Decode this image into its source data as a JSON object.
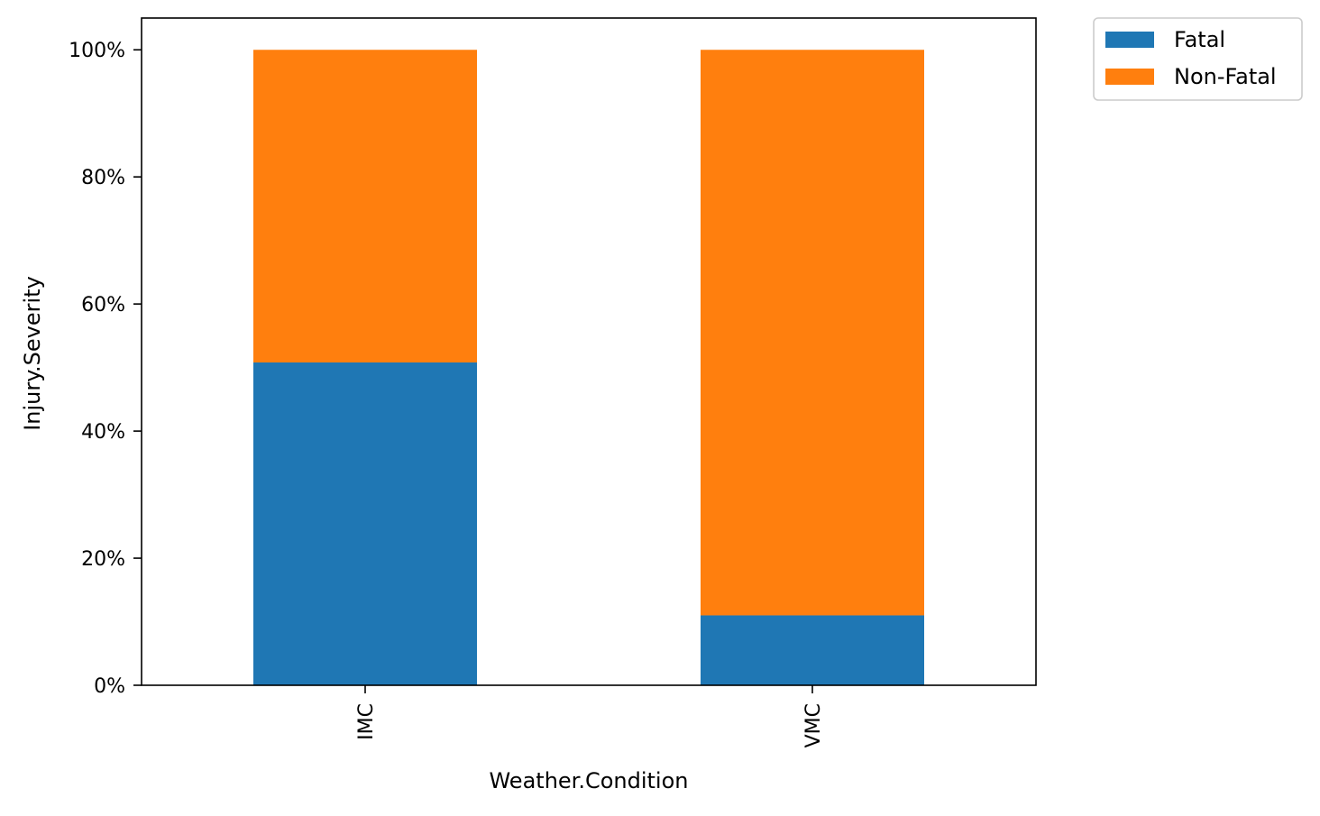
{
  "chart_data": {
    "type": "bar",
    "stacked": true,
    "normalized_percent": true,
    "categories": [
      "IMC",
      "VMC"
    ],
    "series": [
      {
        "name": "Fatal",
        "color": "#1f77b4",
        "values": [
          50.8,
          11.0
        ]
      },
      {
        "name": "Non-Fatal",
        "color": "#ff7f0e",
        "values": [
          49.2,
          89.0
        ]
      }
    ],
    "xlabel": "Weather.Condition",
    "ylabel": "Injury.Severity",
    "ylim": [
      0,
      105
    ],
    "yticks": [
      0,
      20,
      40,
      60,
      80,
      100
    ],
    "ytick_labels": [
      "0%",
      "20%",
      "40%",
      "60%",
      "80%",
      "100%"
    ],
    "xtick_rotation": "vertical",
    "grid": false,
    "legend_position": "outside-top-right"
  }
}
